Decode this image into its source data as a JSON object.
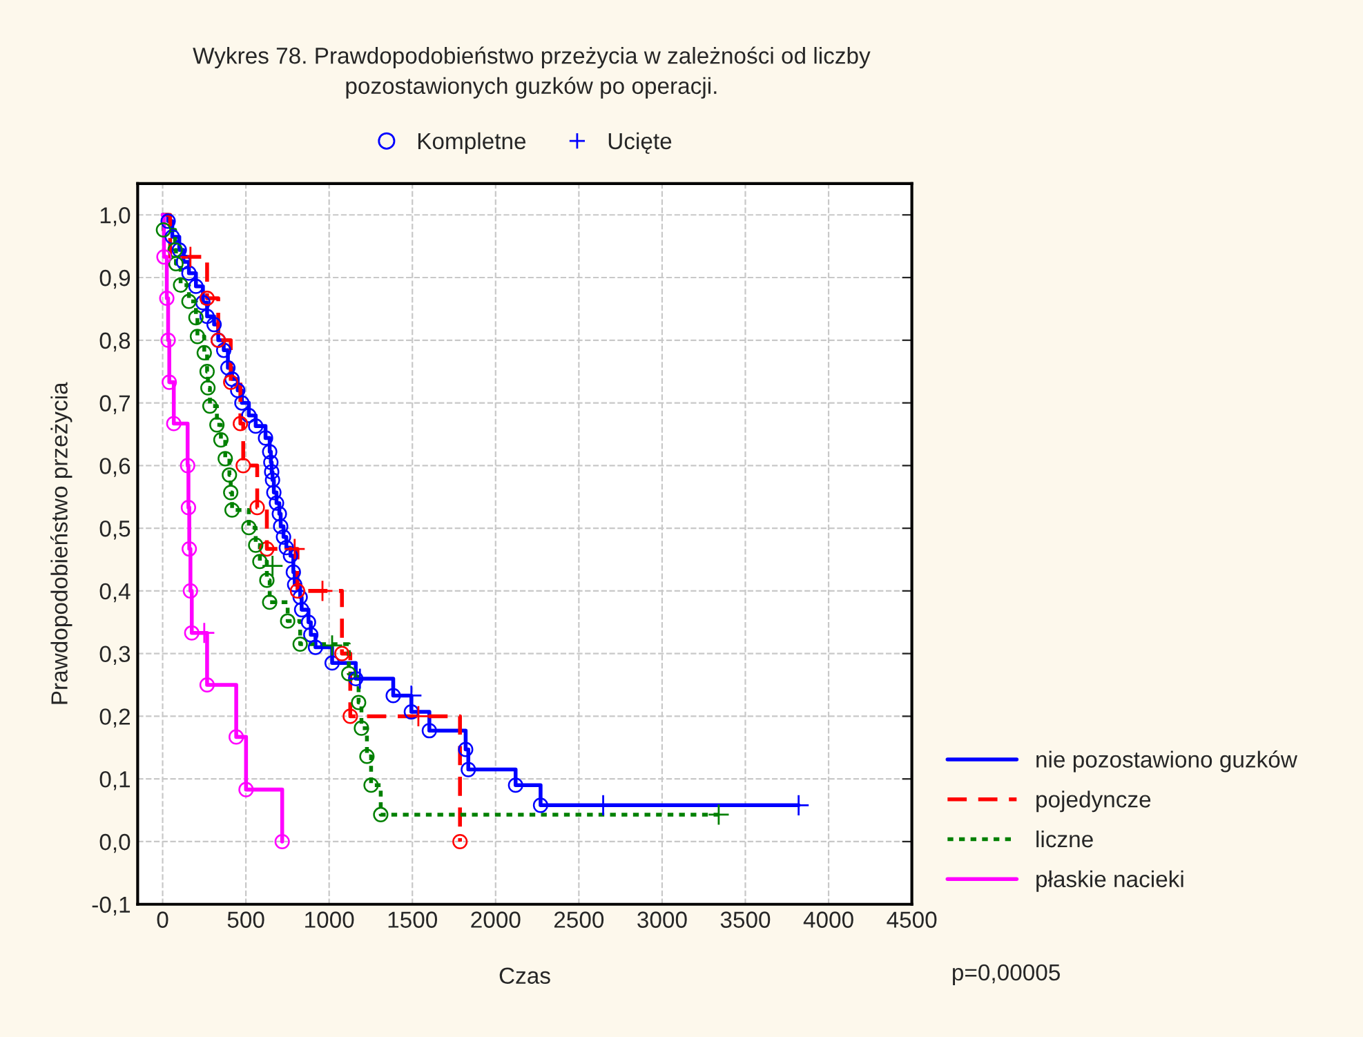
{
  "chart_data": {
    "type": "step",
    "title": "Wykres 78. Prawdopodobieństwo przeżycia w zależności od liczby\npozostawionych guzków po operacji.",
    "xlabel": "Czas",
    "ylabel": "Prawdopodobieństwo przeżycia",
    "xlim": [
      -150,
      4500
    ],
    "xticks": [
      0,
      500,
      1000,
      1500,
      2000,
      2500,
      3000,
      3500,
      4000,
      4500
    ],
    "ylim": [
      -0.1,
      1.05
    ],
    "yticks": [
      {
        "value": -0.1,
        "label": "-0,1"
      },
      {
        "value": 0.0,
        "label": "0,0"
      },
      {
        "value": 0.1,
        "label": "0,1"
      },
      {
        "value": 0.2,
        "label": "0,2"
      },
      {
        "value": 0.3,
        "label": "0,3"
      },
      {
        "value": 0.4,
        "label": "0,4"
      },
      {
        "value": 0.5,
        "label": "0,5"
      },
      {
        "value": 0.6,
        "label": "0,6"
      },
      {
        "value": 0.7,
        "label": "0,7"
      },
      {
        "value": 0.8,
        "label": "0,8"
      },
      {
        "value": 0.9,
        "label": "0,9"
      },
      {
        "value": 1.0,
        "label": "1,0"
      }
    ],
    "grid": true,
    "legend": "right",
    "annotations": [
      "p=0,00005"
    ],
    "series": [
      {
        "name": "nie pozostawiono guzków",
        "color": "#0000ff",
        "line_style": "solid",
        "x": [
          0,
          33,
          58,
          100,
          125,
          158,
          200,
          242,
          267,
          309,
          334,
          367,
          392,
          417,
          451,
          476,
          518,
          559,
          618,
          643,
          650,
          655,
          660,
          668,
          684,
          701,
          709,
          726,
          743,
          768,
          785,
          793,
          826,
          835,
          876,
          890,
          918,
          1018,
          1160,
          1385,
          1494,
          1602,
          1820,
          1836,
          2120,
          2270,
          3820
        ],
        "values": [
          1.0,
          0.99,
          0.965,
          0.944,
          0.925,
          0.907,
          0.886,
          0.86,
          0.838,
          0.825,
          0.8,
          0.784,
          0.756,
          0.738,
          0.72,
          0.7,
          0.68,
          0.663,
          0.644,
          0.622,
          0.605,
          0.59,
          0.577,
          0.557,
          0.54,
          0.523,
          0.503,
          0.486,
          0.469,
          0.456,
          0.43,
          0.41,
          0.39,
          0.37,
          0.35,
          0.33,
          0.31,
          0.285,
          0.26,
          0.233,
          0.207,
          0.177,
          0.147,
          0.115,
          0.09,
          0.058,
          0.058
        ]
      },
      {
        "name": "pojedyncze",
        "color": "#ff0000",
        "line_style": "dashed",
        "x": [
          0,
          45,
          267,
          334,
          409,
          467,
          484,
          568,
          626,
          810,
          1077,
          1127,
          1786
        ],
        "values": [
          1.0,
          0.933,
          0.867,
          0.8,
          0.733,
          0.667,
          0.6,
          0.533,
          0.467,
          0.4,
          0.3,
          0.2,
          0.0
        ]
      },
      {
        "name": "liczne",
        "color": "#008000",
        "line_style": "dotted",
        "x": [
          0,
          5,
          75,
          80,
          108,
          158,
          200,
          209,
          250,
          267,
          272,
          284,
          326,
          350,
          376,
          401,
          409,
          417,
          518,
          559,
          584,
          626,
          643,
          751,
          826,
          1118,
          1177,
          1194,
          1227,
          1252,
          1310,
          3340
        ],
        "values": [
          1.0,
          0.976,
          0.944,
          0.922,
          0.888,
          0.862,
          0.836,
          0.806,
          0.78,
          0.75,
          0.724,
          0.695,
          0.665,
          0.641,
          0.611,
          0.585,
          0.557,
          0.529,
          0.501,
          0.473,
          0.447,
          0.417,
          0.382,
          0.352,
          0.315,
          0.268,
          0.222,
          0.181,
          0.136,
          0.09,
          0.043,
          0.043
        ]
      },
      {
        "name": "płaskie nacieki",
        "color": "#ff00ff",
        "line_style": "solid",
        "x": [
          0,
          8,
          25,
          33,
          40,
          67,
          150,
          155,
          160,
          167,
          175,
          267,
          442,
          501,
          718
        ],
        "values": [
          1.0,
          0.933,
          0.867,
          0.8,
          0.733,
          0.667,
          0.6,
          0.533,
          0.467,
          0.4,
          0.333,
          0.25,
          0.167,
          0.083,
          0.0
        ]
      },
      {
        "name": "Kompletne",
        "type": "scatter",
        "marker": "circle",
        "color": "#0000ff",
        "x": [
          33,
          58,
          100,
          125,
          158,
          200,
          242,
          267,
          309,
          334,
          367,
          392,
          417,
          451,
          476,
          518,
          559,
          618,
          643,
          650,
          655,
          660,
          668,
          684,
          701,
          709,
          726,
          743,
          768,
          785,
          793,
          826,
          835,
          876,
          890,
          918,
          1018,
          1160,
          1385,
          1494,
          1602,
          1820,
          1836,
          2120,
          2270,
          267,
          334,
          409,
          467,
          484,
          568,
          626,
          810,
          1077,
          1127,
          1786,
          5,
          75,
          80,
          108,
          158,
          200,
          209,
          250,
          267,
          272,
          284,
          326,
          350,
          376,
          401,
          409,
          417,
          518,
          559,
          584,
          626,
          643,
          751,
          826,
          1118,
          1177,
          1194,
          1227,
          1252,
          1310,
          8,
          25,
          33,
          40,
          67,
          150,
          155,
          160,
          167,
          175,
          267,
          442,
          501,
          718
        ],
        "values": [
          0.99,
          0.965,
          0.944,
          0.925,
          0.907,
          0.886,
          0.86,
          0.838,
          0.825,
          0.8,
          0.784,
          0.756,
          0.738,
          0.72,
          0.7,
          0.68,
          0.663,
          0.644,
          0.622,
          0.605,
          0.59,
          0.577,
          0.557,
          0.54,
          0.523,
          0.503,
          0.486,
          0.469,
          0.456,
          0.43,
          0.41,
          0.39,
          0.37,
          0.35,
          0.33,
          0.31,
          0.285,
          0.26,
          0.233,
          0.207,
          0.177,
          0.147,
          0.115,
          0.09,
          0.058,
          0.867,
          0.8,
          0.733,
          0.667,
          0.6,
          0.533,
          0.467,
          0.4,
          0.3,
          0.2,
          0.0,
          0.976,
          0.944,
          0.922,
          0.888,
          0.862,
          0.836,
          0.806,
          0.78,
          0.75,
          0.724,
          0.695,
          0.665,
          0.641,
          0.611,
          0.585,
          0.557,
          0.529,
          0.501,
          0.473,
          0.447,
          0.417,
          0.382,
          0.352,
          0.315,
          0.268,
          0.222,
          0.181,
          0.136,
          0.09,
          0.043,
          0.933,
          0.867,
          0.8,
          0.733,
          0.667,
          0.6,
          0.533,
          0.467,
          0.4,
          0.333,
          0.25,
          0.167,
          0.083,
          0.0
        ],
        "colors": [
          "#0000ff",
          "#0000ff",
          "#0000ff",
          "#0000ff",
          "#0000ff",
          "#0000ff",
          "#0000ff",
          "#0000ff",
          "#0000ff",
          "#0000ff",
          "#0000ff",
          "#0000ff",
          "#0000ff",
          "#0000ff",
          "#0000ff",
          "#0000ff",
          "#0000ff",
          "#0000ff",
          "#0000ff",
          "#0000ff",
          "#0000ff",
          "#0000ff",
          "#0000ff",
          "#0000ff",
          "#0000ff",
          "#0000ff",
          "#0000ff",
          "#0000ff",
          "#0000ff",
          "#0000ff",
          "#0000ff",
          "#0000ff",
          "#0000ff",
          "#0000ff",
          "#0000ff",
          "#0000ff",
          "#0000ff",
          "#0000ff",
          "#0000ff",
          "#0000ff",
          "#0000ff",
          "#0000ff",
          "#0000ff",
          "#0000ff",
          "#0000ff",
          "#ff0000",
          "#ff0000",
          "#ff0000",
          "#ff0000",
          "#ff0000",
          "#ff0000",
          "#ff0000",
          "#ff0000",
          "#ff0000",
          "#ff0000",
          "#ff0000",
          "#008000",
          "#008000",
          "#008000",
          "#008000",
          "#008000",
          "#008000",
          "#008000",
          "#008000",
          "#008000",
          "#008000",
          "#008000",
          "#008000",
          "#008000",
          "#008000",
          "#008000",
          "#008000",
          "#008000",
          "#008000",
          "#008000",
          "#008000",
          "#008000",
          "#008000",
          "#008000",
          "#008000",
          "#008000",
          "#008000",
          "#008000",
          "#008000",
          "#008000",
          "#008000",
          "#ff00ff",
          "#ff00ff",
          "#ff00ff",
          "#ff00ff",
          "#ff00ff",
          "#ff00ff",
          "#ff00ff",
          "#ff00ff",
          "#ff00ff",
          "#ff00ff",
          "#ff00ff",
          "#ff00ff",
          "#ff00ff",
          "#ff00ff"
        ]
      },
      {
        "name": "Ucięte",
        "type": "scatter",
        "marker": "cross",
        "color": "#0000ff",
        "x": [
          1185,
          1494,
          2646,
          3820,
          167,
          793,
          960,
          1536,
          660,
          1018,
          3340,
          250
        ],
        "values": [
          0.26,
          0.233,
          0.058,
          0.058,
          0.933,
          0.467,
          0.4,
          0.2,
          0.44,
          0.313,
          0.043,
          0.333
        ],
        "colors": [
          "#0000ff",
          "#0000ff",
          "#0000ff",
          "#0000ff",
          "#ff0000",
          "#ff0000",
          "#ff0000",
          "#ff0000",
          "#008000",
          "#008000",
          "#008000",
          "#ff00ff"
        ]
      }
    ]
  }
}
